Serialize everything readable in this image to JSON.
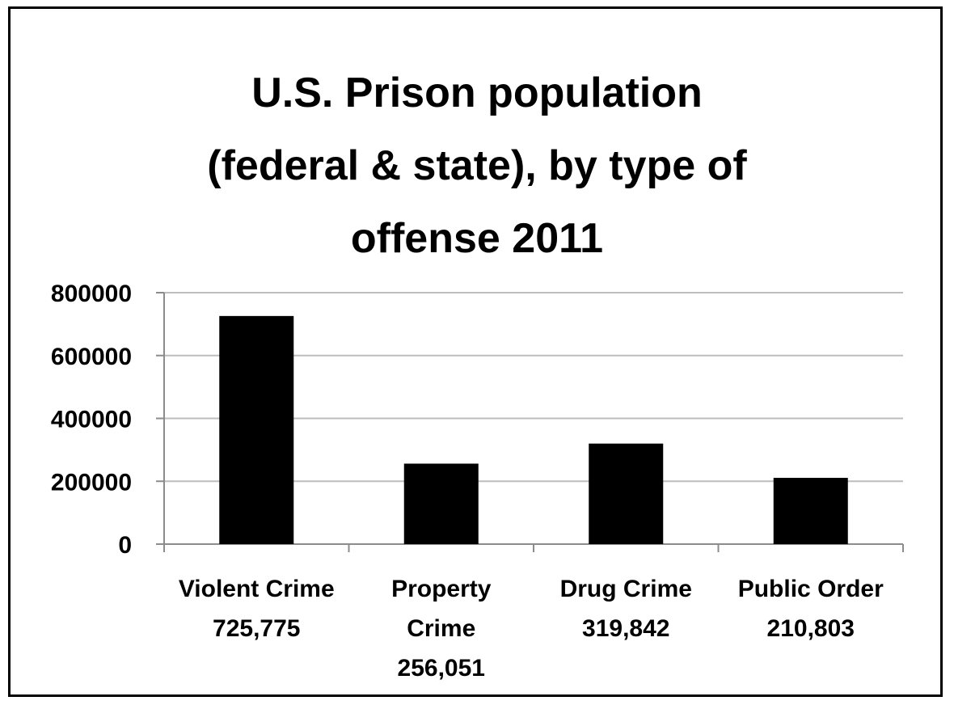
{
  "chart_data": {
    "type": "bar",
    "title_lines": [
      "U.S. Prison population",
      "(federal & state), by type of",
      "offense 2011"
    ],
    "categories": [
      [
        "Violent Crime",
        "725,775"
      ],
      [
        "Property",
        "Crime",
        "256,051"
      ],
      [
        "Drug Crime",
        "319,842"
      ],
      [
        "Public Order",
        "210,803"
      ]
    ],
    "values": [
      725775,
      256051,
      319842,
      210803
    ],
    "ylim": [
      0,
      800000
    ],
    "yticks": [
      "0",
      "200000",
      "400000",
      "600000",
      "800000"
    ],
    "ytick_values": [
      0,
      200000,
      400000,
      600000,
      800000
    ],
    "grid": true,
    "bar_color": "#000000",
    "grid_color": "#bdbdbd",
    "axis_color": "#8c8c8c"
  }
}
